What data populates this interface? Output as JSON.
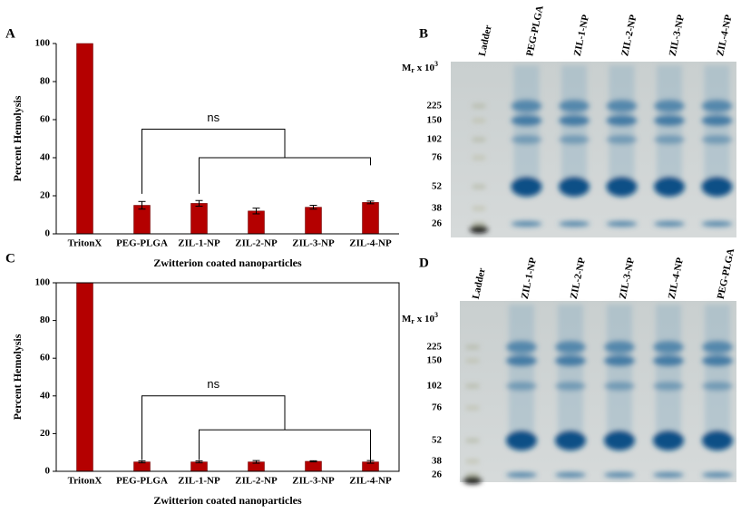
{
  "chart_data": [
    {
      "type": "bar",
      "panel": "A",
      "ylabel": "Percent Hemolysis",
      "xlabel": "Zwitterion coated nanoparticles",
      "categories": [
        "TritonX",
        "PEG-PLGA",
        "ZIL-1-NP",
        "ZIL-2-NP",
        "ZIL-3-NP",
        "ZIL-4-NP"
      ],
      "values": [
        100,
        15,
        16,
        12,
        14,
        16.5
      ],
      "errors": [
        0,
        2,
        1.5,
        1.5,
        1,
        0.7
      ],
      "color": "#b40000",
      "ylim": [
        0,
        100
      ],
      "yticks": [
        0,
        20,
        40,
        60,
        80,
        100
      ],
      "annotation": "ns",
      "border": false
    },
    {
      "type": "bar",
      "panel": "C",
      "ylabel": "Percent Hemolysis",
      "xlabel": "Zwitterion coated nanoparticles",
      "categories": [
        "TritonX",
        "PEG-PLGA",
        "ZIL-1-NP",
        "ZIL-2-NP",
        "ZIL-3-NP",
        "ZIL-4-NP"
      ],
      "values": [
        100,
        5,
        5,
        5,
        5.3,
        5
      ],
      "errors": [
        0,
        0.5,
        0.5,
        0.7,
        0.3,
        0.7
      ],
      "color": "#b40000",
      "ylim": [
        0,
        100
      ],
      "yticks": [
        0,
        20,
        40,
        60,
        80,
        100
      ],
      "annotation": "ns",
      "border": true
    }
  ],
  "gels": [
    {
      "panel": "B",
      "lanes": [
        "Ladder",
        "PEG-PLGA",
        "ZIL-1-NP",
        "ZIL-2-NP",
        "ZIL-3-NP",
        "ZIL-4-NP"
      ],
      "mr_label": {
        "main": "M",
        "sub": "r",
        "mid": " x 10",
        "sup": "3"
      },
      "markers": [
        "225",
        "150",
        "102",
        "76",
        "52",
        "38",
        "26"
      ]
    },
    {
      "panel": "D",
      "lanes": [
        "Ladder",
        "ZIL-1-NP",
        "ZIL-2-NP",
        "ZIL-3-NP",
        "ZIL-4-NP",
        "PEG-PLGA"
      ],
      "mr_label": {
        "main": "M",
        "sub": "r",
        "mid": " x 10",
        "sup": "3"
      },
      "markers": [
        "225",
        "150",
        "102",
        "76",
        "52",
        "38",
        "26"
      ]
    }
  ]
}
